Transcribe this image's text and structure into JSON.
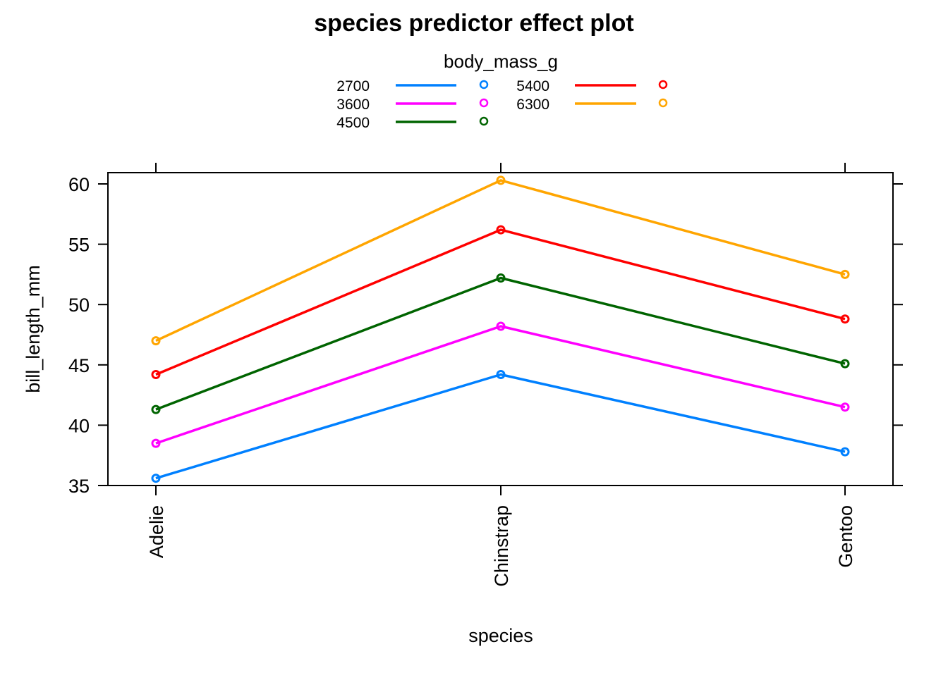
{
  "chart_data": {
    "type": "line",
    "title": "species predictor effect plot",
    "xlabel": "species",
    "ylabel": "bill_length_mm",
    "categories": [
      "Adelie",
      "Chinstrap",
      "Gentoo"
    ],
    "ylim": [
      35,
      61
    ],
    "yticks": [
      "35",
      "40",
      "45",
      "50",
      "55",
      "60"
    ],
    "grid": false,
    "markers": "open-circle",
    "legend": {
      "title": "body_mass_g",
      "placement": "top-center",
      "columns": 2
    },
    "series": [
      {
        "name": "2700",
        "color": "#0080ff",
        "values": [
          35.6,
          44.2,
          37.8
        ]
      },
      {
        "name": "3600",
        "color": "#ff00ff",
        "values": [
          38.5,
          48.2,
          41.5
        ]
      },
      {
        "name": "4500",
        "color": "#006400",
        "values": [
          41.3,
          52.2,
          45.1
        ]
      },
      {
        "name": "5400",
        "color": "#ff0000",
        "values": [
          44.2,
          56.2,
          48.8
        ]
      },
      {
        "name": "6300",
        "color": "#ffa500",
        "values": [
          47.0,
          60.3,
          52.5
        ]
      }
    ]
  }
}
